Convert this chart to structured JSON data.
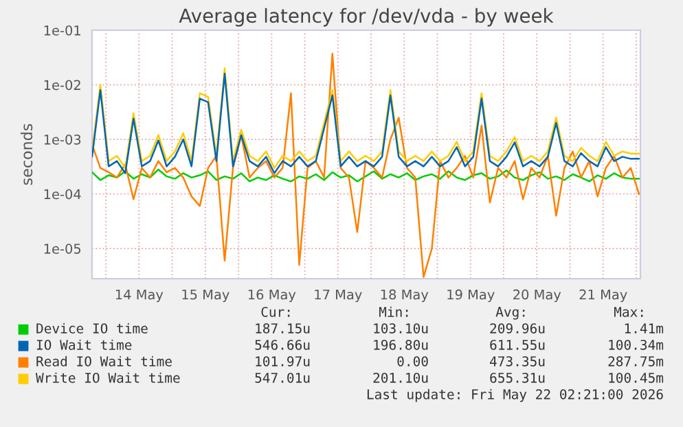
{
  "chart_data": {
    "type": "line",
    "title": "Average latency for /dev/vda - by week",
    "ylabel": "seconds",
    "x": [
      "2026-05-13T19:00",
      "2026-05-13T22:00",
      "2026-05-14T01:00",
      "2026-05-14T04:00",
      "2026-05-14T07:00",
      "2026-05-14T10:00",
      "2026-05-14T13:00",
      "2026-05-14T16:00",
      "2026-05-14T19:00",
      "2026-05-14T22:00",
      "2026-05-15T01:00",
      "2026-05-15T04:00",
      "2026-05-15T07:00",
      "2026-05-15T10:00",
      "2026-05-15T13:00",
      "2026-05-15T16:00",
      "2026-05-15T19:00",
      "2026-05-15T22:00",
      "2026-05-16T01:00",
      "2026-05-16T04:00",
      "2026-05-16T07:00",
      "2026-05-16T10:00",
      "2026-05-16T13:00",
      "2026-05-16T16:00",
      "2026-05-16T19:00",
      "2026-05-16T22:00",
      "2026-05-17T01:00",
      "2026-05-17T04:00",
      "2026-05-17T07:00",
      "2026-05-17T10:00",
      "2026-05-17T13:00",
      "2026-05-17T16:00",
      "2026-05-17T19:00",
      "2026-05-17T22:00",
      "2026-05-18T01:00",
      "2026-05-18T04:00",
      "2026-05-18T07:00",
      "2026-05-18T10:00",
      "2026-05-18T13:00",
      "2026-05-18T16:00",
      "2026-05-18T19:00",
      "2026-05-18T22:00",
      "2026-05-19T01:00",
      "2026-05-19T04:00",
      "2026-05-19T07:00",
      "2026-05-19T10:00",
      "2026-05-19T13:00",
      "2026-05-19T16:00",
      "2026-05-19T19:00",
      "2026-05-19T22:00",
      "2026-05-20T01:00",
      "2026-05-20T04:00",
      "2026-05-20T07:00",
      "2026-05-20T10:00",
      "2026-05-20T13:00",
      "2026-05-20T16:00",
      "2026-05-20T19:00",
      "2026-05-20T22:00",
      "2026-05-21T01:00",
      "2026-05-21T04:00",
      "2026-05-21T07:00",
      "2026-05-21T10:00",
      "2026-05-21T13:00",
      "2026-05-21T16:00",
      "2026-05-21T19:00",
      "2026-05-21T22:00",
      "2026-05-22T01:00"
    ],
    "series": [
      {
        "name": "Device IO time",
        "color": "#00cc00",
        "values": [
          0.00025,
          0.00018,
          0.00022,
          0.0002,
          0.00026,
          0.00019,
          0.00023,
          0.0002,
          0.00028,
          0.00021,
          0.00019,
          0.00024,
          0.0002,
          0.00022,
          0.00026,
          0.00018,
          0.00021,
          0.00019,
          0.00024,
          0.00017,
          0.0002,
          0.00018,
          0.00022,
          0.00019,
          0.00017,
          0.00021,
          0.00019,
          0.00023,
          0.00018,
          0.00025,
          0.0002,
          0.00022,
          0.00017,
          0.00021,
          0.00026,
          0.00019,
          0.00023,
          0.0002,
          0.00024,
          0.00018,
          0.00021,
          0.00023,
          0.00019,
          0.00026,
          0.0002,
          0.00018,
          0.00022,
          0.00024,
          0.00019,
          0.00021,
          0.00027,
          0.0002,
          0.00018,
          0.00022,
          0.00025,
          0.00019,
          0.00021,
          0.00018,
          0.00023,
          0.0002,
          0.00017,
          0.00022,
          0.00019,
          0.00024,
          0.0002,
          0.00019,
          0.00019
        ]
      },
      {
        "name": "IO Wait time",
        "color": "#0066b3",
        "values": [
          0.00048,
          0.008,
          0.00032,
          0.0004,
          0.00024,
          0.0024,
          0.00032,
          0.0004,
          0.00096,
          0.00032,
          0.00048,
          0.001,
          0.00032,
          0.0056,
          0.0048,
          0.0004,
          0.016,
          0.00032,
          0.0012,
          0.0004,
          0.00032,
          0.00048,
          0.00024,
          0.0004,
          0.00032,
          0.00048,
          0.00032,
          0.0004,
          0.0016,
          0.0064,
          0.00032,
          0.00048,
          0.00032,
          0.0004,
          0.00032,
          0.00048,
          0.0064,
          0.00048,
          0.00032,
          0.0004,
          0.00032,
          0.00048,
          0.00032,
          0.0004,
          0.00072,
          0.00032,
          0.00048,
          0.0056,
          0.0004,
          0.00032,
          0.00048,
          0.00088,
          0.00032,
          0.0004,
          0.00032,
          0.00048,
          0.002,
          0.0004,
          0.00032,
          0.00056,
          0.0004,
          0.00032,
          0.00072,
          0.0004,
          0.00048,
          0.00044,
          0.00044
        ]
      },
      {
        "name": "Read IO Wait time",
        "color": "#ff8000",
        "values": [
          0.0008,
          0.0003,
          0.00025,
          0.0002,
          0.00035,
          8e-05,
          0.0003,
          0.0002,
          0.0004,
          0.00025,
          0.0003,
          0.0002,
          9e-05,
          6e-05,
          0.0003,
          0.0005,
          6e-06,
          0.0003,
          0.0012,
          0.0002,
          0.0003,
          0.0004,
          0.0002,
          0.0003,
          0.007,
          5e-06,
          0.0003,
          0.0004,
          0.0002,
          0.037,
          0.0003,
          0.0002,
          2e-05,
          0.0004,
          0.0003,
          0.0002,
          0.001,
          0.0025,
          0.0003,
          0.0002,
          3e-06,
          1e-05,
          0.0004,
          0.0002,
          0.0003,
          0.0005,
          0.0002,
          0.0018,
          7e-05,
          0.0003,
          0.0002,
          0.0004,
          8e-05,
          0.0003,
          0.0002,
          0.0005,
          4e-05,
          0.0003,
          0.0006,
          0.0002,
          0.0004,
          9e-05,
          0.0003,
          0.0005,
          0.0002,
          0.0003,
          0.0001
        ]
      },
      {
        "name": "Write IO Wait time",
        "color": "#ffcc00",
        "values": [
          0.0006,
          0.01,
          0.0004,
          0.0005,
          0.0003,
          0.003,
          0.0004,
          0.0005,
          0.0012,
          0.0004,
          0.0006,
          0.0013,
          0.0004,
          0.007,
          0.006,
          0.0005,
          0.02,
          0.0004,
          0.0015,
          0.0005,
          0.0004,
          0.0006,
          0.0003,
          0.0005,
          0.0004,
          0.0006,
          0.0004,
          0.0005,
          0.002,
          0.008,
          0.0004,
          0.0006,
          0.0004,
          0.0005,
          0.0004,
          0.0006,
          0.008,
          0.0006,
          0.0004,
          0.0005,
          0.0004,
          0.0006,
          0.0004,
          0.0005,
          0.0009,
          0.0004,
          0.0006,
          0.007,
          0.0005,
          0.0004,
          0.0006,
          0.0011,
          0.0004,
          0.0005,
          0.0004,
          0.0006,
          0.0025,
          0.0005,
          0.0004,
          0.0007,
          0.0005,
          0.0004,
          0.0009,
          0.0005,
          0.0006,
          0.00055,
          0.00055
        ]
      }
    ],
    "log": "y",
    "ylim": [
      2.8e-06,
      0.1
    ],
    "yticks": [
      {
        "value": 1e-05,
        "label": "1e-05"
      },
      {
        "value": 0.0001,
        "label": "1e-04"
      },
      {
        "value": 0.001,
        "label": "1e-03"
      },
      {
        "value": 0.01,
        "label": "1e-02"
      },
      {
        "value": 0.1,
        "label": "1e-01"
      }
    ],
    "xlim": [
      "2026-05-13T19:00",
      "2026-05-22T01:30"
    ],
    "xticks": [
      {
        "value": "2026-05-14T00:00",
        "label": null
      },
      {
        "value": "2026-05-14T12:00",
        "label": "14 May"
      },
      {
        "value": "2026-05-15T00:00",
        "label": null
      },
      {
        "value": "2026-05-15T12:00",
        "label": "15 May"
      },
      {
        "value": "2026-05-16T00:00",
        "label": null
      },
      {
        "value": "2026-05-16T12:00",
        "label": "16 May"
      },
      {
        "value": "2026-05-17T00:00",
        "label": null
      },
      {
        "value": "2026-05-17T12:00",
        "label": "17 May"
      },
      {
        "value": "2026-05-18T00:00",
        "label": null
      },
      {
        "value": "2026-05-18T12:00",
        "label": "18 May"
      },
      {
        "value": "2026-05-19T00:00",
        "label": null
      },
      {
        "value": "2026-05-19T12:00",
        "label": "19 May"
      },
      {
        "value": "2026-05-20T00:00",
        "label": null
      },
      {
        "value": "2026-05-20T12:00",
        "label": "20 May"
      },
      {
        "value": "2026-05-21T00:00",
        "label": null
      },
      {
        "value": "2026-05-21T12:00",
        "label": "21 May"
      },
      {
        "value": "2026-05-22T00:00",
        "label": null
      }
    ],
    "grid": true,
    "legend": "bottom",
    "line_style": "solid",
    "annotations": [
      "Cur:",
      "Min:",
      "Avg:",
      "Max:",
      "187.15u",
      "103.10u",
      "209.96u",
      "1.41m",
      "546.66u",
      "196.80u",
      "611.55u",
      "100.34m",
      "101.97u",
      "0.00",
      "473.35u",
      "287.75m",
      "547.01u",
      "201.10u",
      "655.31u",
      "100.45m",
      "Last update: Fri May 22 02:21:00 2026"
    ]
  }
}
